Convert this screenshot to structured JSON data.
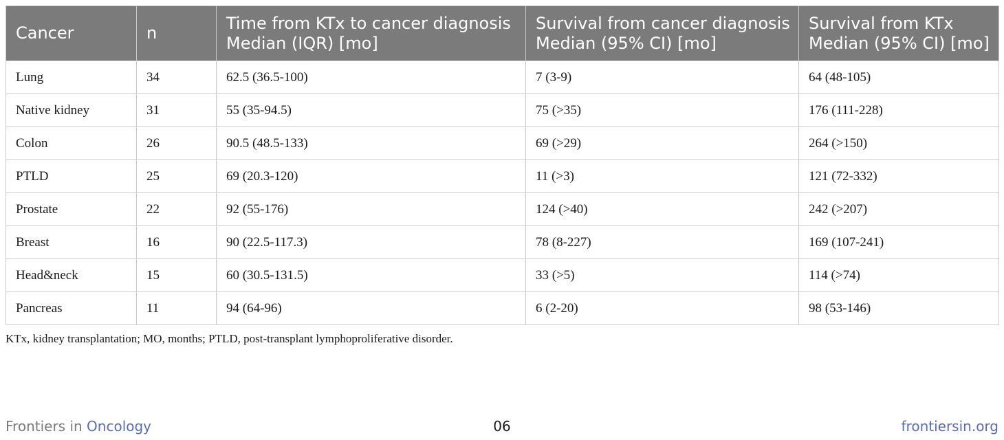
{
  "table": {
    "headers": [
      {
        "line1": "Cancer",
        "line2": ""
      },
      {
        "line1": "n",
        "line2": ""
      },
      {
        "line1": "Time from KTx to cancer diagnosis",
        "line2": "Median (IQR) [mo]"
      },
      {
        "line1": "Survival from cancer diagnosis",
        "line2": "Median (95% CI) [mo]"
      },
      {
        "line1": "Survival from KTx",
        "line2": "Median (95% CI) [mo]"
      }
    ],
    "rows": [
      [
        "Lung",
        "34",
        "62.5 (36.5-100)",
        "7 (3-9)",
        "64 (48-105)"
      ],
      [
        "Native kidney",
        "31",
        "55 (35-94.5)",
        "75 (>35)",
        "176 (111-228)"
      ],
      [
        "Colon",
        "26",
        "90.5 (48.5-133)",
        "69 (>29)",
        "264 (>150)"
      ],
      [
        "PTLD",
        "25",
        "69 (20.3-120)",
        "11 (>3)",
        "121 (72-332)"
      ],
      [
        "Prostate",
        "22",
        "92 (55-176)",
        "124 (>40)",
        "242 (>207)"
      ],
      [
        "Breast",
        "16",
        "90 (22.5-117.3)",
        "78 (8-227)",
        "169 (107-241)"
      ],
      [
        "Head&neck",
        "15",
        "60 (30.5-131.5)",
        "33 (>5)",
        "114 (>74)"
      ],
      [
        "Pancreas",
        "11",
        "94 (64-96)",
        "6 (2-20)",
        "98 (53-146)"
      ]
    ]
  },
  "footnote": "KTx, kidney transplantation; MO, months; PTLD, post-transplant lymphoproliferative disorder.",
  "footer": {
    "journal_prefix": "Frontiers in ",
    "journal_name": "Oncology",
    "page_number": "06",
    "website": "frontiersin.org"
  },
  "colors": {
    "header_bg": "#7b7b7b",
    "accent": "#5a6fa8"
  }
}
